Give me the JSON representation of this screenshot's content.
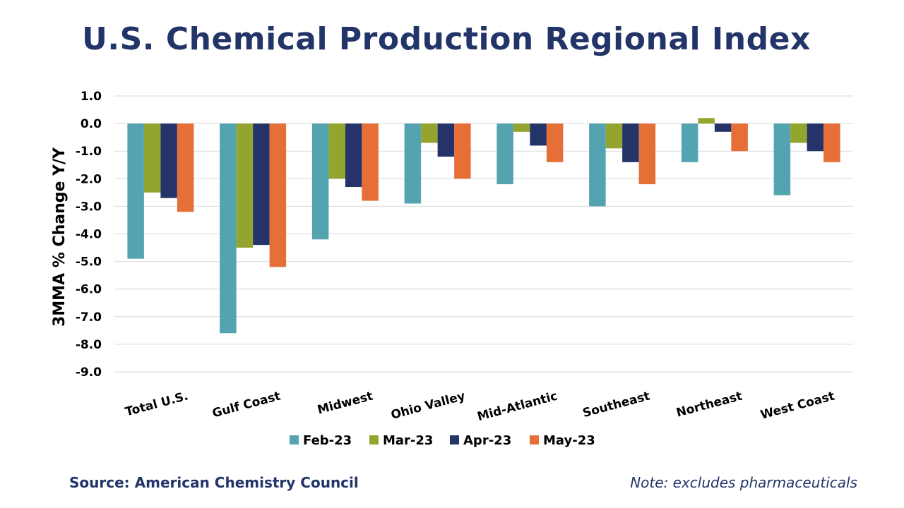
{
  "header": {
    "title": "U.S. Chemical Production Regional Index"
  },
  "footer": {
    "source": "Source: American Chemistry Council",
    "note": "Note: excludes pharmaceuticals"
  },
  "chart_data": {
    "type": "bar",
    "title": "U.S. Chemical Production Regional Index",
    "xlabel": "",
    "ylabel": "3MMA % Change Y/Y",
    "ylim": [
      -9.0,
      1.0
    ],
    "yticks": [
      "1.0",
      "0.0",
      "-1.0",
      "-2.0",
      "-3.0",
      "-4.0",
      "-5.0",
      "-6.0",
      "-7.0",
      "-8.0",
      "-9.0"
    ],
    "grid": true,
    "legend_position": "bottom",
    "categories": [
      "Total U.S.",
      "Gulf Coast",
      "Midwest",
      "Ohio Valley",
      "Mid-Atlantic",
      "Southeast",
      "Northeast",
      "West Coast"
    ],
    "series": [
      {
        "name": "Feb-23",
        "color": "#53A4B0",
        "values": [
          -4.9,
          -7.6,
          -4.2,
          -2.9,
          -2.2,
          -3.0,
          -1.4,
          -2.6
        ]
      },
      {
        "name": "Mar-23",
        "color": "#93A52E",
        "values": [
          -2.5,
          -4.5,
          -2.0,
          -0.7,
          -0.3,
          -0.9,
          0.2,
          -0.7
        ]
      },
      {
        "name": "Apr-23",
        "color": "#243468",
        "values": [
          -2.7,
          -4.4,
          -2.3,
          -1.2,
          -0.8,
          -1.4,
          -0.3,
          -1.0
        ]
      },
      {
        "name": "May-23",
        "color": "#E56F37",
        "values": [
          -3.2,
          -5.2,
          -2.8,
          -2.0,
          -1.4,
          -2.2,
          -1.0,
          -1.4
        ]
      }
    ]
  }
}
